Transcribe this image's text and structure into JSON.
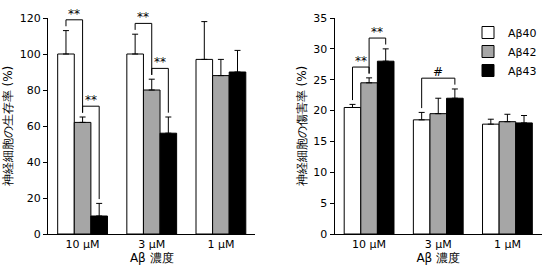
{
  "chart_data": [
    {
      "type": "bar",
      "categories": [
        "10 μM",
        "3 μM",
        "1 μM"
      ],
      "series": [
        {
          "name": "Aβ40",
          "color": "#ffffff",
          "values": [
            100,
            100,
            97
          ],
          "errors": [
            13,
            11,
            21
          ]
        },
        {
          "name": "Aβ42",
          "color": "#a6a6a6",
          "values": [
            62,
            80,
            88
          ],
          "errors": [
            3,
            6,
            9
          ]
        },
        {
          "name": "Aβ43",
          "color": "#000000",
          "values": [
            10,
            56,
            90
          ],
          "errors": [
            7,
            9,
            12
          ]
        }
      ],
      "x_label": "Aβ 濃度",
      "y_label": "神経細胞の生存率 (%)",
      "ylim": [
        0,
        120
      ],
      "yticks": [
        0,
        20,
        40,
        60,
        80,
        100,
        120
      ],
      "grid": false,
      "significance": [
        {
          "category": "10 μM",
          "from": "Aβ40",
          "to": "Aβ42",
          "label": "**"
        },
        {
          "category": "10 μM",
          "from": "Aβ42",
          "to": "Aβ43",
          "label": "**"
        },
        {
          "category": "3 μM",
          "from": "Aβ40",
          "to": "Aβ42",
          "label": "**"
        },
        {
          "category": "3 μM",
          "from": "Aβ42",
          "to": "Aβ43",
          "label": "**"
        }
      ]
    },
    {
      "type": "bar",
      "categories": [
        "10 μM",
        "3 μM",
        "1 μM"
      ],
      "series": [
        {
          "name": "Aβ40",
          "color": "#ffffff",
          "values": [
            20.5,
            18.5,
            17.8
          ],
          "errors": [
            0.5,
            1.2,
            0.8
          ]
        },
        {
          "name": "Aβ42",
          "color": "#a6a6a6",
          "values": [
            24.5,
            19.5,
            18.2
          ],
          "errors": [
            0.8,
            2.5,
            1.2
          ]
        },
        {
          "name": "Aβ43",
          "color": "#000000",
          "values": [
            28,
            22,
            18
          ],
          "errors": [
            2,
            1.5,
            1.2
          ]
        }
      ],
      "x_label": "Aβ 濃度",
      "y_label": "神経細胞の傷害率 (%)",
      "ylim": [
        0,
        35
      ],
      "yticks": [
        0,
        5,
        10,
        15,
        20,
        25,
        30,
        35
      ],
      "grid": false,
      "legend": "upper right",
      "significance": [
        {
          "category": "10 μM",
          "from": "Aβ40",
          "to": "Aβ42",
          "label": "**"
        },
        {
          "category": "10 μM",
          "from": "Aβ42",
          "to": "Aβ43",
          "label": "**"
        },
        {
          "category": "3 μM",
          "from": "Aβ40",
          "to": "Aβ43",
          "label": "#"
        }
      ]
    }
  ]
}
